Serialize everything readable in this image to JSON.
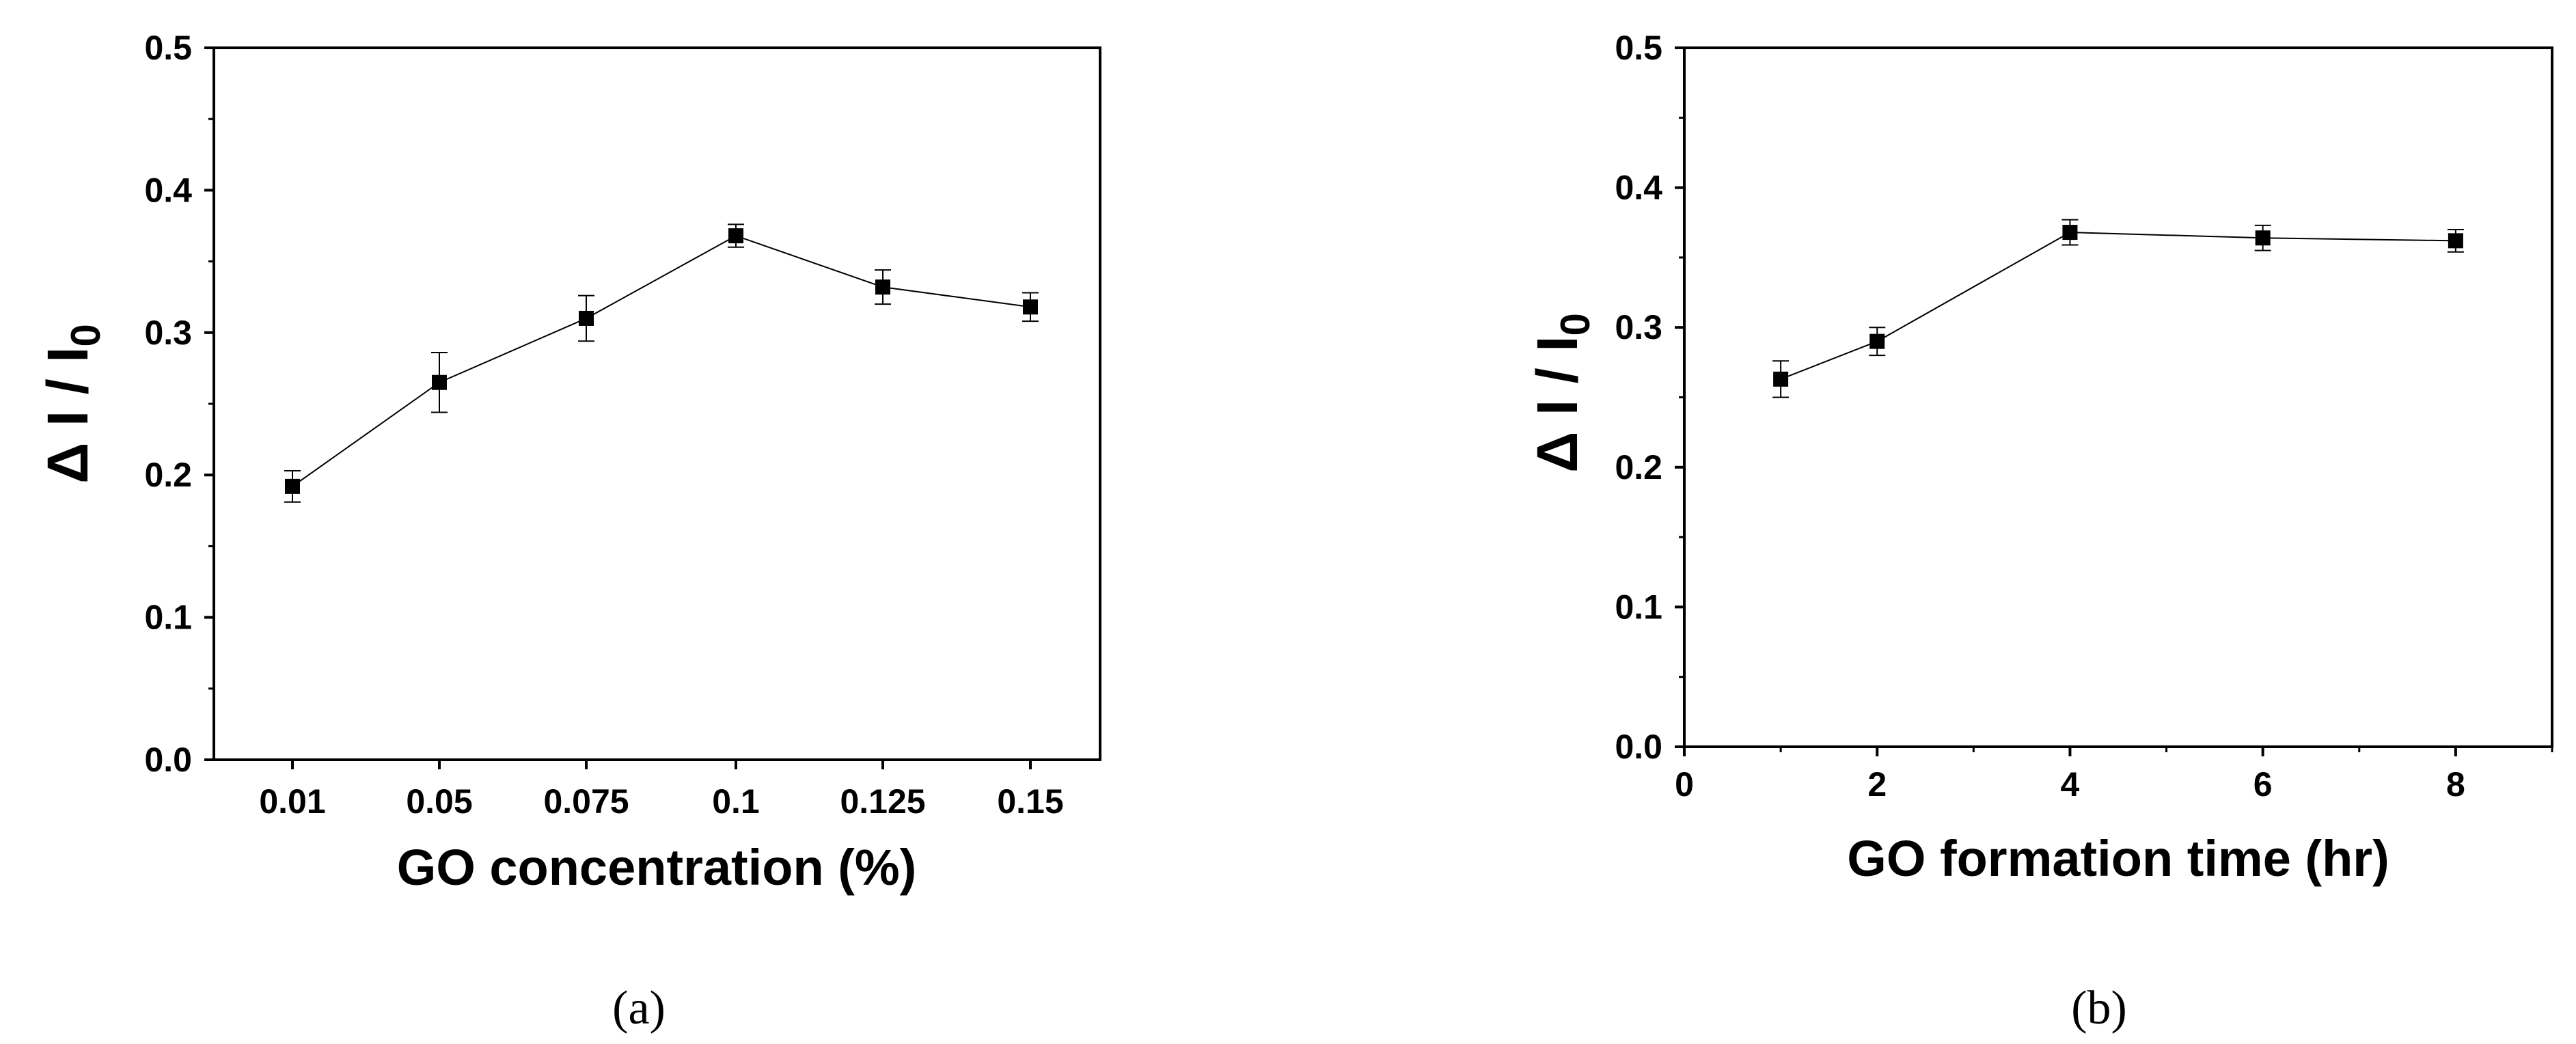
{
  "chart_data": [
    {
      "type": "line",
      "panel_label": "(a)",
      "xlabel": "GO concentration (%)",
      "ylabel": "Δ I / I",
      "ylabel_subscript": "0",
      "x_scale": "categorical",
      "categories": [
        "0.01",
        "0.05",
        "0.075",
        "0.1",
        "0.125",
        "0.15"
      ],
      "ylim": [
        0,
        0.5
      ],
      "yticks": [
        "0.0",
        "0.1",
        "0.2",
        "0.3",
        "0.4",
        "0.5"
      ],
      "series": [
        {
          "marker": "square",
          "color": "#000000",
          "values": [
            0.192,
            0.265,
            0.31,
            0.368,
            0.332,
            0.318
          ],
          "errors": [
            0.011,
            0.021,
            0.016,
            0.008,
            0.012,
            0.01
          ]
        }
      ],
      "grid": false,
      "legend": false
    },
    {
      "type": "line",
      "panel_label": "(b)",
      "xlabel": "GO formation time (hr)",
      "ylabel": "Δ I / I",
      "ylabel_subscript": "0",
      "x_scale": "linear",
      "xlim": [
        0,
        9
      ],
      "xticks": [
        "0",
        "2",
        "4",
        "6",
        "8"
      ],
      "ylim": [
        0,
        0.5
      ],
      "yticks": [
        "0.0",
        "0.1",
        "0.2",
        "0.3",
        "0.4",
        "0.5"
      ],
      "series": [
        {
          "marker": "square",
          "color": "#000000",
          "x": [
            1,
            2,
            4,
            6,
            8
          ],
          "values": [
            0.263,
            0.29,
            0.368,
            0.364,
            0.362
          ],
          "errors": [
            0.013,
            0.01,
            0.009,
            0.009,
            0.008
          ]
        }
      ],
      "grid": false,
      "legend": false
    }
  ]
}
